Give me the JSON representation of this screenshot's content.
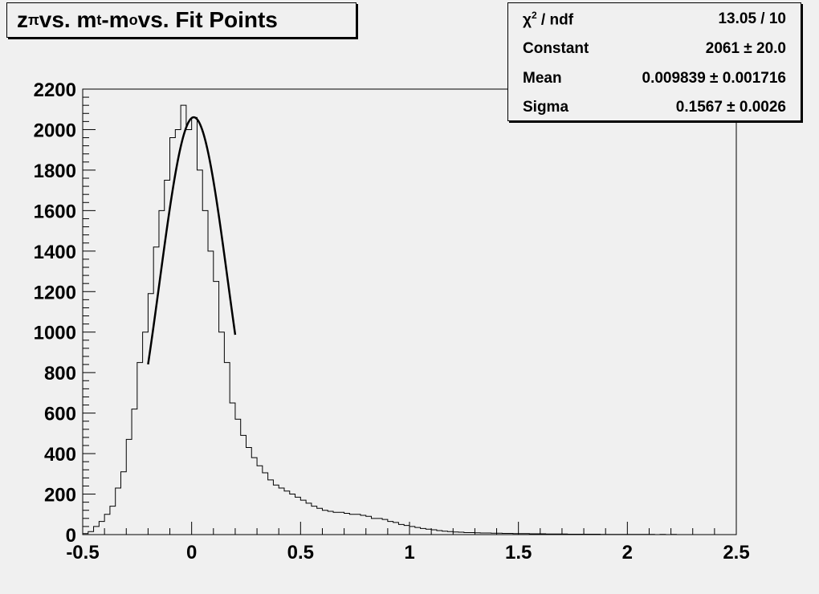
{
  "title": {
    "main": "z",
    "sub1": "π",
    "part2": " vs. m",
    "sub2": "t",
    "part3": "-m",
    "sub3": "o",
    "part4": " vs. Fit Points"
  },
  "stats": {
    "rows": [
      {
        "label": "ndf",
        "chi_prefix": "χ",
        "chi_sup": "2",
        "chi_suffix": " / ",
        "value": "13.05 / 10"
      },
      {
        "label": "Constant",
        "value": "2061 ± 20.0"
      },
      {
        "label": "Mean",
        "value": "0.009839 ± 0.001716"
      },
      {
        "label": "Sigma",
        "value": "0.1567 ± 0.0026"
      }
    ]
  },
  "chart_data": {
    "type": "histogram",
    "xlim": [
      -0.5,
      2.5
    ],
    "ylim": [
      0,
      2200
    ],
    "x_ticks": [
      "-0.5",
      "0",
      "0.5",
      "1",
      "1.5",
      "2",
      "2.5"
    ],
    "y_ticks": [
      "0",
      "200",
      "400",
      "600",
      "800",
      "1000",
      "1200",
      "1400",
      "1600",
      "1800",
      "2000",
      "2200"
    ],
    "bin_width": 0.025,
    "bin_start": -0.5,
    "counts": [
      5,
      15,
      40,
      65,
      100,
      140,
      230,
      310,
      470,
      620,
      850,
      1000,
      1190,
      1420,
      1600,
      1750,
      1960,
      2000,
      2120,
      2000,
      2060,
      1800,
      1600,
      1400,
      1250,
      1000,
      850,
      650,
      570,
      490,
      430,
      380,
      340,
      305,
      270,
      245,
      230,
      215,
      200,
      185,
      170,
      155,
      140,
      130,
      120,
      115,
      110,
      110,
      105,
      100,
      100,
      95,
      90,
      80,
      80,
      75,
      65,
      60,
      50,
      45,
      40,
      35,
      30,
      27,
      24,
      20,
      17,
      15,
      13,
      12,
      10,
      10,
      9,
      8,
      8,
      7,
      7,
      6,
      6,
      5,
      5,
      5,
      4,
      4,
      4,
      3,
      3,
      3,
      3,
      2,
      2,
      2,
      2,
      2,
      2,
      1,
      1,
      1,
      1,
      1,
      1,
      1,
      1,
      1,
      1,
      0,
      1,
      0,
      1,
      0,
      0,
      0,
      0,
      0,
      0,
      0,
      0,
      0,
      0,
      0
    ],
    "fit": {
      "constant": 2061,
      "mean": 0.009839,
      "sigma": 0.1567,
      "range": [
        -0.2,
        0.2
      ]
    }
  }
}
